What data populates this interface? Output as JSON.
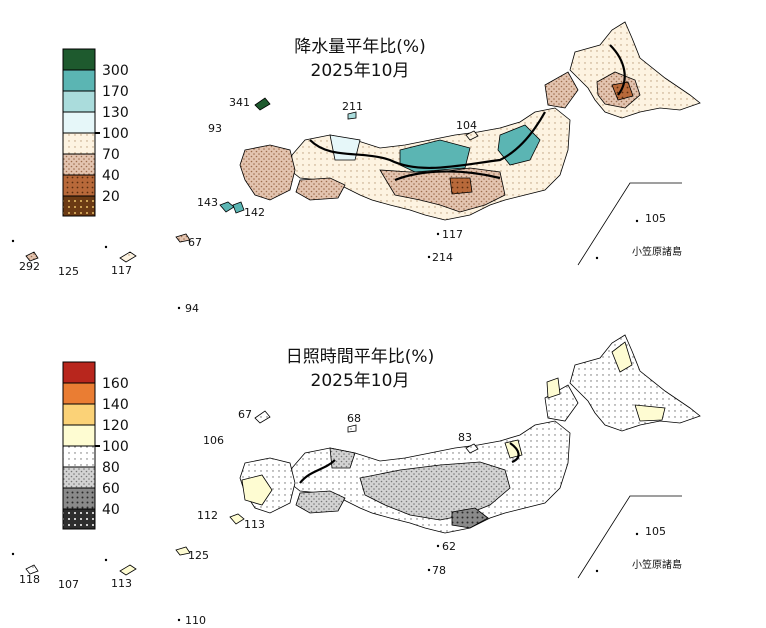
{
  "colors": {
    "p300": "#1e5a2e",
    "p170": "#5bb5b3",
    "p130": "#aadcdc",
    "p100": "#e6f7f9",
    "p70": "#fdf3e1",
    "p40": "#e3c4b0",
    "p20": "#b8693a",
    "p0": "#6b3a14",
    "s160": "#b8261d",
    "s140": "#ea7d33",
    "s120": "#fbd277",
    "s100": "#fefcd2",
    "s80": "#ffffff",
    "s60": "#d3d3d3",
    "s40": "#8a8a8a",
    "s0": "#2e2e2e",
    "land_white": "#ffffff",
    "border": "#000000"
  },
  "precip": {
    "title_line1": "降水量平年比(%)",
    "title_line2": "2025年10月",
    "legend": [
      "300",
      "170",
      "130",
      "100",
      "70",
      "40",
      "20"
    ],
    "stations": [
      "341",
      "211",
      "93",
      "104",
      "143",
      "142",
      "117",
      "214",
      "105",
      "292",
      "125",
      "117",
      "67",
      "94"
    ],
    "inset_name": "小笠原諸島"
  },
  "sunshine": {
    "title_line1": "日照時間平年比(%)",
    "title_line2": "2025年10月",
    "legend": [
      "160",
      "140",
      "120",
      "100",
      "80",
      "60",
      "40"
    ],
    "stations": [
      "67",
      "68",
      "106",
      "83",
      "112",
      "113",
      "62",
      "78",
      "105",
      "118",
      "107",
      "113",
      "125",
      "110"
    ],
    "inset_name": "小笠原諸島"
  }
}
